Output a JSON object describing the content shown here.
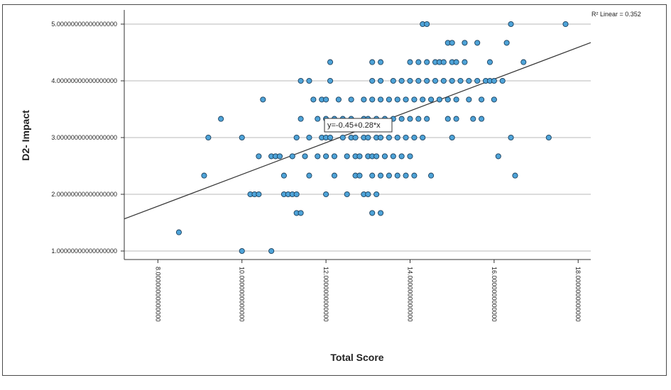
{
  "chart_data": {
    "type": "scatter",
    "xlabel": "Total Score",
    "ylabel": "D2- Impact",
    "xlim": [
      7.2,
      18.3
    ],
    "ylim": [
      0.85,
      5.25
    ],
    "xticks": [
      8,
      10,
      12,
      14,
      16,
      18
    ],
    "xtick_labels": [
      "8.00000000000000",
      "10.0000000000000",
      "12.0000000000000",
      "14.0000000000000",
      "16.0000000000000",
      "18.0000000000000"
    ],
    "yticks": [
      1,
      2,
      3,
      4,
      5
    ],
    "ytick_labels": [
      "1.00000000000000000",
      "2.00000000000000000",
      "3.00000000000000000",
      "4.00000000000000000",
      "5.00000000000000000"
    ],
    "grid": "horizontal",
    "r2_label": "R² Linear = 0.352",
    "equation_label": "y=-0.45+0.28*x",
    "fit": {
      "intercept": -0.45,
      "slope": 0.28
    },
    "colors": {
      "marker_fill": "#4ea3d8",
      "marker_stroke": "#1b3f5c",
      "grid": "#c8c8c8",
      "fit_line": "#333333"
    },
    "points": [
      [
        8.5,
        1.33
      ],
      [
        9.1,
        2.33
      ],
      [
        9.2,
        3.0
      ],
      [
        9.5,
        3.33
      ],
      [
        10.0,
        1.0
      ],
      [
        10.0,
        3.0
      ],
      [
        10.2,
        2.0
      ],
      [
        10.3,
        2.0
      ],
      [
        10.4,
        2.67
      ],
      [
        10.4,
        2.0
      ],
      [
        10.5,
        3.67
      ],
      [
        10.7,
        1.0
      ],
      [
        10.7,
        2.67
      ],
      [
        10.8,
        2.67
      ],
      [
        10.9,
        2.67
      ],
      [
        11.0,
        2.33
      ],
      [
        11.0,
        2.0
      ],
      [
        11.1,
        2.0
      ],
      [
        11.2,
        2.0
      ],
      [
        11.2,
        2.67
      ],
      [
        11.3,
        1.67
      ],
      [
        11.3,
        2.0
      ],
      [
        11.3,
        3.0
      ],
      [
        11.4,
        1.67
      ],
      [
        11.4,
        3.33
      ],
      [
        11.4,
        4.0
      ],
      [
        11.5,
        2.67
      ],
      [
        11.6,
        2.33
      ],
      [
        11.6,
        4.0
      ],
      [
        11.6,
        3.0
      ],
      [
        11.7,
        3.67
      ],
      [
        11.8,
        3.33
      ],
      [
        11.8,
        2.67
      ],
      [
        11.9,
        3.0
      ],
      [
        11.9,
        3.67
      ],
      [
        12.0,
        2.0
      ],
      [
        12.0,
        3.33
      ],
      [
        12.0,
        3.0
      ],
      [
        12.0,
        3.67
      ],
      [
        12.0,
        2.67
      ],
      [
        12.1,
        4.33
      ],
      [
        12.1,
        4.0
      ],
      [
        12.1,
        3.0
      ],
      [
        12.2,
        2.33
      ],
      [
        12.2,
        3.33
      ],
      [
        12.2,
        2.67
      ],
      [
        12.3,
        3.67
      ],
      [
        12.4,
        3.33
      ],
      [
        12.4,
        3.0
      ],
      [
        12.5,
        2.67
      ],
      [
        12.5,
        2.0
      ],
      [
        12.6,
        3.67
      ],
      [
        12.6,
        3.33
      ],
      [
        12.6,
        3.0
      ],
      [
        12.7,
        2.33
      ],
      [
        12.7,
        2.67
      ],
      [
        12.7,
        3.0
      ],
      [
        12.8,
        2.67
      ],
      [
        12.8,
        2.33
      ],
      [
        12.9,
        2.0
      ],
      [
        12.9,
        3.0
      ],
      [
        12.9,
        3.67
      ],
      [
        12.9,
        3.33
      ],
      [
        13.0,
        2.67
      ],
      [
        13.0,
        2.0
      ],
      [
        13.0,
        3.0
      ],
      [
        13.0,
        3.33
      ],
      [
        13.1,
        1.67
      ],
      [
        13.1,
        2.33
      ],
      [
        13.1,
        2.67
      ],
      [
        13.1,
        3.67
      ],
      [
        13.1,
        4.0
      ],
      [
        13.1,
        4.33
      ],
      [
        13.2,
        2.0
      ],
      [
        13.2,
        2.67
      ],
      [
        13.2,
        3.0
      ],
      [
        13.2,
        3.33
      ],
      [
        13.3,
        1.67
      ],
      [
        13.3,
        2.33
      ],
      [
        13.3,
        3.0
      ],
      [
        13.3,
        3.67
      ],
      [
        13.3,
        4.0
      ],
      [
        13.3,
        4.33
      ],
      [
        13.4,
        2.67
      ],
      [
        13.4,
        3.33
      ],
      [
        13.5,
        2.33
      ],
      [
        13.5,
        3.0
      ],
      [
        13.5,
        3.67
      ],
      [
        13.6,
        2.67
      ],
      [
        13.6,
        3.33
      ],
      [
        13.6,
        4.0
      ],
      [
        13.7,
        2.33
      ],
      [
        13.7,
        3.0
      ],
      [
        13.7,
        3.67
      ],
      [
        13.8,
        2.67
      ],
      [
        13.8,
        3.33
      ],
      [
        13.8,
        4.0
      ],
      [
        13.9,
        3.0
      ],
      [
        13.9,
        2.33
      ],
      [
        13.9,
        3.67
      ],
      [
        14.0,
        2.67
      ],
      [
        14.0,
        3.33
      ],
      [
        14.0,
        4.0
      ],
      [
        14.0,
        4.33
      ],
      [
        14.1,
        3.0
      ],
      [
        14.1,
        2.33
      ],
      [
        14.1,
        3.67
      ],
      [
        14.2,
        4.33
      ],
      [
        14.2,
        3.33
      ],
      [
        14.2,
        4.0
      ],
      [
        14.3,
        5.0
      ],
      [
        14.3,
        3.0
      ],
      [
        14.3,
        3.67
      ],
      [
        14.4,
        4.0
      ],
      [
        14.4,
        5.0
      ],
      [
        14.4,
        4.33
      ],
      [
        14.4,
        3.33
      ],
      [
        14.5,
        2.33
      ],
      [
        14.5,
        3.67
      ],
      [
        14.6,
        4.33
      ],
      [
        14.6,
        4.0
      ],
      [
        14.7,
        3.67
      ],
      [
        14.7,
        4.33
      ],
      [
        14.8,
        4.0
      ],
      [
        14.8,
        4.33
      ],
      [
        14.9,
        3.33
      ],
      [
        14.9,
        4.67
      ],
      [
        14.9,
        3.67
      ],
      [
        15.0,
        4.67
      ],
      [
        15.0,
        4.33
      ],
      [
        15.0,
        4.0
      ],
      [
        15.0,
        3.0
      ],
      [
        15.1,
        3.33
      ],
      [
        15.1,
        4.33
      ],
      [
        15.1,
        3.67
      ],
      [
        15.2,
        4.0
      ],
      [
        15.3,
        4.67
      ],
      [
        15.3,
        4.33
      ],
      [
        15.4,
        3.67
      ],
      [
        15.4,
        4.0
      ],
      [
        15.5,
        3.33
      ],
      [
        15.6,
        4.0
      ],
      [
        15.6,
        4.67
      ],
      [
        15.7,
        3.33
      ],
      [
        15.7,
        3.67
      ],
      [
        15.8,
        4.0
      ],
      [
        15.9,
        4.33
      ],
      [
        15.9,
        4.0
      ],
      [
        16.0,
        3.67
      ],
      [
        16.0,
        4.0
      ],
      [
        16.1,
        2.67
      ],
      [
        16.2,
        4.0
      ],
      [
        16.3,
        4.67
      ],
      [
        16.4,
        5.0
      ],
      [
        16.4,
        3.0
      ],
      [
        16.5,
        2.33
      ],
      [
        16.7,
        4.33
      ],
      [
        17.3,
        3.0
      ],
      [
        17.7,
        5.0
      ]
    ]
  }
}
